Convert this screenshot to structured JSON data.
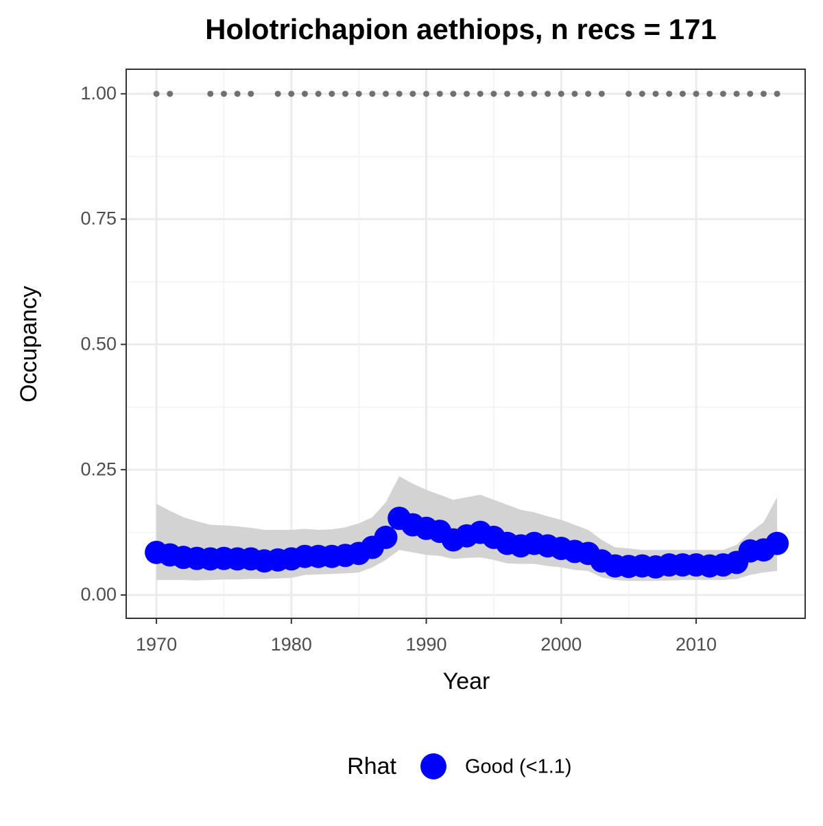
{
  "chart_data": {
    "type": "line",
    "title": "Holotrichapion aethiops, n recs = 171",
    "x_label": "Year",
    "y_label": "Occupancy",
    "x": [
      1970,
      1971,
      1972,
      1973,
      1974,
      1975,
      1976,
      1977,
      1978,
      1979,
      1980,
      1981,
      1982,
      1983,
      1984,
      1985,
      1986,
      1987,
      1988,
      1989,
      1990,
      1991,
      1992,
      1993,
      1994,
      1995,
      1996,
      1997,
      1998,
      1999,
      2000,
      2001,
      2002,
      2003,
      2004,
      2005,
      2006,
      2007,
      2008,
      2009,
      2010,
      2011,
      2012,
      2013,
      2014,
      2015,
      2016
    ],
    "series": [
      {
        "name": "Good (<1.1)",
        "color": "#0000ff",
        "values": [
          0.085,
          0.08,
          0.075,
          0.073,
          0.072,
          0.073,
          0.072,
          0.072,
          0.068,
          0.07,
          0.072,
          0.077,
          0.077,
          0.077,
          0.079,
          0.083,
          0.095,
          0.115,
          0.153,
          0.14,
          0.133,
          0.127,
          0.11,
          0.118,
          0.125,
          0.115,
          0.103,
          0.098,
          0.103,
          0.098,
          0.093,
          0.087,
          0.083,
          0.068,
          0.058,
          0.057,
          0.058,
          0.056,
          0.06,
          0.06,
          0.06,
          0.058,
          0.06,
          0.065,
          0.088,
          0.09,
          0.103
        ]
      }
    ],
    "band": {
      "color": "#d3d3d3",
      "upper": [
        0.182,
        0.168,
        0.155,
        0.147,
        0.14,
        0.139,
        0.137,
        0.134,
        0.13,
        0.13,
        0.13,
        0.132,
        0.13,
        0.131,
        0.135,
        0.143,
        0.155,
        0.185,
        0.237,
        0.222,
        0.21,
        0.2,
        0.19,
        0.195,
        0.2,
        0.19,
        0.18,
        0.17,
        0.165,
        0.157,
        0.15,
        0.14,
        0.13,
        0.11,
        0.095,
        0.093,
        0.09,
        0.09,
        0.09,
        0.09,
        0.09,
        0.09,
        0.09,
        0.1,
        0.125,
        0.145,
        0.195
      ],
      "lower": [
        0.03,
        0.03,
        0.03,
        0.029,
        0.03,
        0.031,
        0.031,
        0.032,
        0.032,
        0.033,
        0.034,
        0.04,
        0.041,
        0.042,
        0.043,
        0.045,
        0.055,
        0.07,
        0.09,
        0.085,
        0.08,
        0.078,
        0.072,
        0.074,
        0.075,
        0.07,
        0.063,
        0.062,
        0.062,
        0.058,
        0.055,
        0.05,
        0.048,
        0.035,
        0.03,
        0.028,
        0.028,
        0.028,
        0.029,
        0.03,
        0.03,
        0.03,
        0.03,
        0.032,
        0.04,
        0.045,
        0.048
      ]
    },
    "records": {
      "color": "#707070",
      "x": [
        1970,
        1971,
        1974,
        1975,
        1976,
        1977,
        1979,
        1980,
        1981,
        1982,
        1983,
        1984,
        1985,
        1986,
        1987,
        1988,
        1989,
        1990,
        1991,
        1992,
        1993,
        1994,
        1995,
        1996,
        1997,
        1998,
        1999,
        2000,
        2001,
        2002,
        2003,
        2005,
        2006,
        2007,
        2008,
        2009,
        2010,
        2011,
        2012,
        2013,
        2014,
        2015,
        2016
      ],
      "values": [
        1,
        1,
        1,
        1,
        1,
        1,
        1,
        1,
        1,
        1,
        1,
        1,
        1,
        1,
        1,
        1,
        1,
        1,
        1,
        1,
        1,
        1,
        1,
        1,
        1,
        1,
        1,
        1,
        1,
        1,
        1,
        1,
        1,
        1,
        1,
        1,
        1,
        1,
        1,
        1,
        1,
        1,
        1
      ]
    },
    "xlim": [
      1967.76,
      2018.08
    ],
    "xticks": [
      1970,
      1980,
      1990,
      2000,
      2010
    ],
    "ylim": [
      -0.0465,
      1.049
    ],
    "yticks": [
      {
        "value": 0,
        "label": "0.00"
      },
      {
        "value": 0.25,
        "label": "0.25"
      },
      {
        "value": 0.5,
        "label": "0.50"
      },
      {
        "value": 0.75,
        "label": "0.75"
      },
      {
        "value": 1,
        "label": "1.00"
      }
    ],
    "grid": true,
    "legend_title": "Rhat",
    "legend_position": "bottom"
  }
}
